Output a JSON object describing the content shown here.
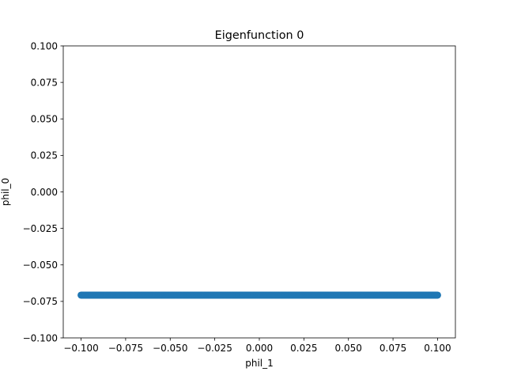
{
  "chart_data": {
    "type": "scatter",
    "title": "Eigenfunction 0",
    "xlabel": "phil_1",
    "ylabel": "phil_0",
    "xlim": [
      -0.11,
      0.11
    ],
    "ylim": [
      -0.1,
      0.1
    ],
    "xticks": [
      -0.1,
      -0.075,
      -0.05,
      -0.025,
      0.0,
      0.025,
      0.05,
      0.075,
      0.1
    ],
    "xtick_labels": [
      "−0.100",
      "−0.075",
      "−0.050",
      "−0.025",
      "0.000",
      "0.025",
      "0.050",
      "0.075",
      "0.100"
    ],
    "yticks": [
      -0.1,
      -0.075,
      -0.05,
      -0.025,
      0.0,
      0.025,
      0.05,
      0.075,
      0.1
    ],
    "ytick_labels": [
      "−0.100",
      "−0.075",
      "−0.050",
      "−0.025",
      "0.000",
      "0.025",
      "0.050",
      "0.075",
      "0.100"
    ],
    "grid": false,
    "marker_color": "#1f77b4",
    "series": [
      {
        "x_range": [
          -0.1,
          0.1
        ],
        "y": -0.0707,
        "point_count": 401
      }
    ]
  }
}
